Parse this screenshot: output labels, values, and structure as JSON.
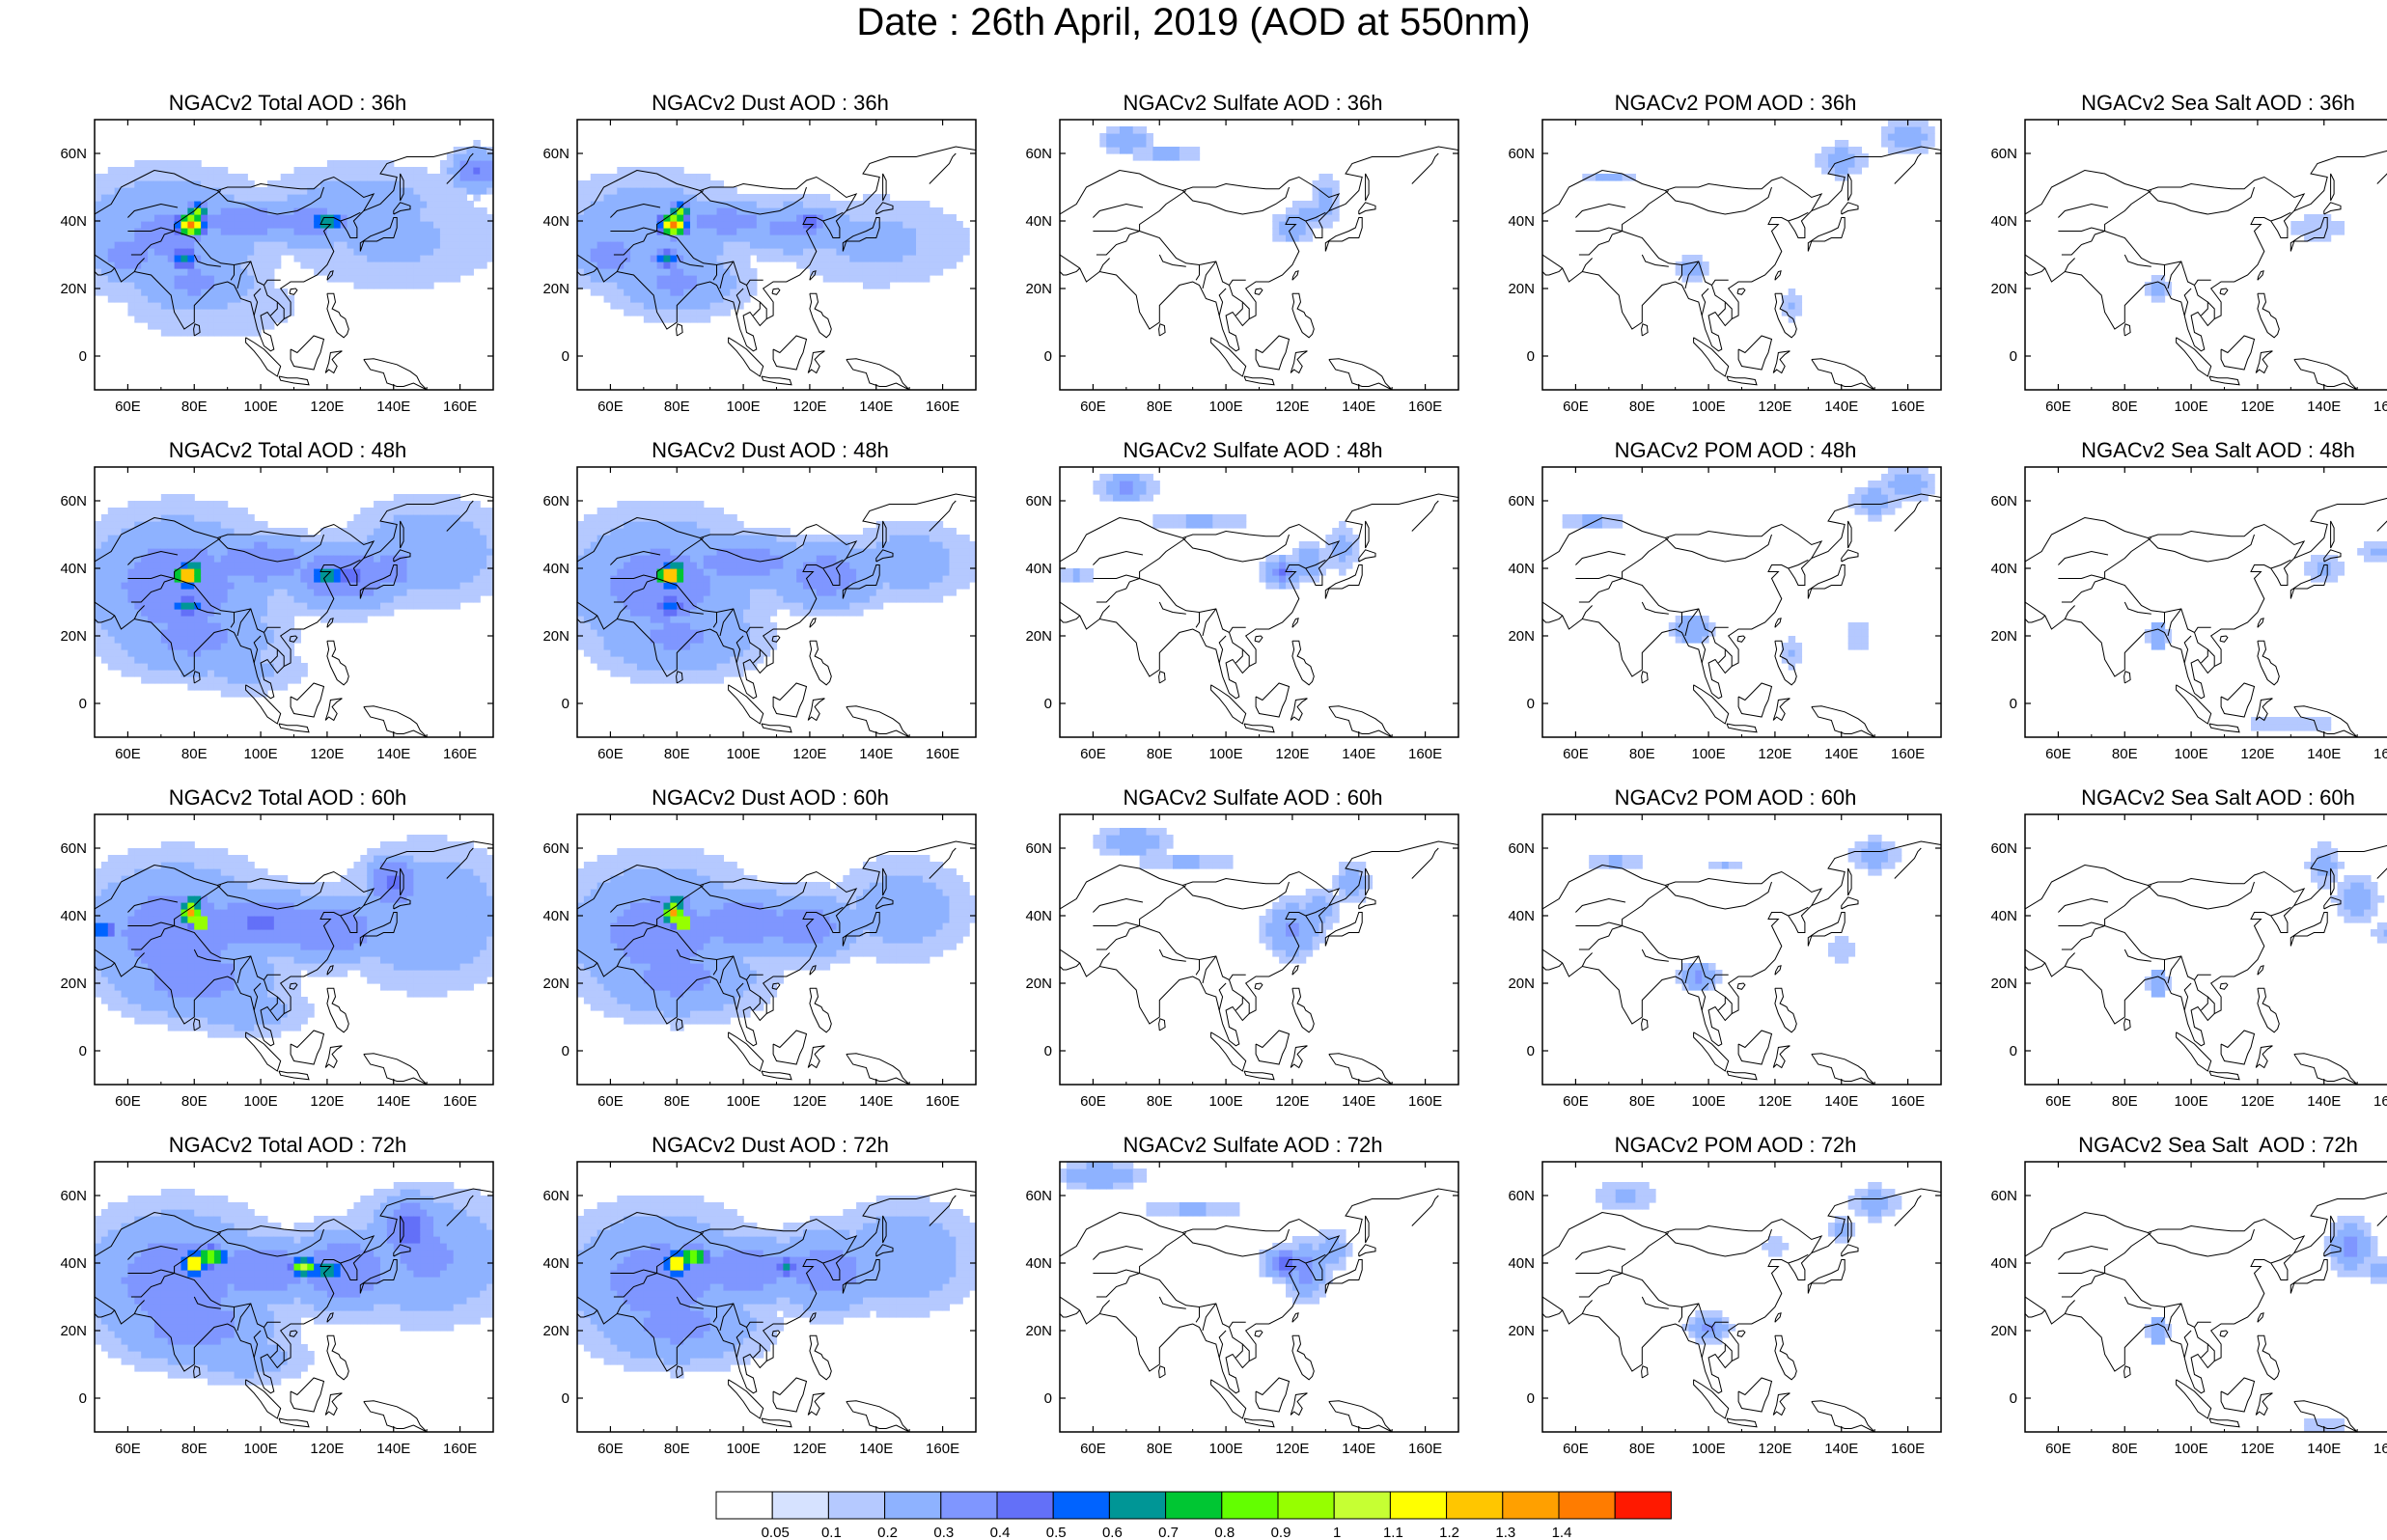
{
  "title": "Date : 26th April, 2019 (AOD at 550nm)",
  "lon_labels": [
    "60E",
    "80E",
    "100E",
    "120E",
    "140E",
    "160E"
  ],
  "lat_labels": [
    "60N",
    "40N",
    "20N",
    "0"
  ],
  "panels": [
    [
      {
        "title": "NGACv2 Total AOD : 36h",
        "species": "total",
        "hour": "36h"
      },
      {
        "title": "NGACv2 Dust AOD : 36h",
        "species": "dust",
        "hour": "36h"
      },
      {
        "title": "NGACv2 Sulfate AOD : 36h",
        "species": "sulfate",
        "hour": "36h"
      },
      {
        "title": "NGACv2 POM AOD : 36h",
        "species": "pom",
        "hour": "36h"
      },
      {
        "title": "NGACv2 Sea Salt AOD : 36h",
        "species": "seasalt",
        "hour": "36h"
      }
    ],
    [
      {
        "title": "NGACv2 Total AOD : 48h",
        "species": "total",
        "hour": "48h"
      },
      {
        "title": "NGACv2 Dust AOD : 48h",
        "species": "dust",
        "hour": "48h"
      },
      {
        "title": "NGACv2 Sulfate AOD : 48h",
        "species": "sulfate",
        "hour": "48h"
      },
      {
        "title": "NGACv2 POM AOD : 48h",
        "species": "pom",
        "hour": "48h"
      },
      {
        "title": "NGACv2 Sea Salt AOD : 48h",
        "species": "seasalt",
        "hour": "48h"
      }
    ],
    [
      {
        "title": "NGACv2 Total AOD : 60h",
        "species": "total",
        "hour": "60h"
      },
      {
        "title": "NGACv2 Dust AOD : 60h",
        "species": "dust",
        "hour": "60h"
      },
      {
        "title": "NGACv2 Sulfate AOD : 60h",
        "species": "sulfate",
        "hour": "60h"
      },
      {
        "title": "NGACv2 POM AOD : 60h",
        "species": "pom",
        "hour": "60h"
      },
      {
        "title": "NGACv2 Sea Salt AOD : 60h",
        "species": "seasalt",
        "hour": "60h"
      }
    ],
    [
      {
        "title": "NGACv2 Total AOD : 72h",
        "species": "total",
        "hour": "72h"
      },
      {
        "title": "NGACv2 Dust AOD : 72h",
        "species": "dust",
        "hour": "72h"
      },
      {
        "title": "NGACv2 Sulfate AOD : 72h",
        "species": "sulfate",
        "hour": "72h"
      },
      {
        "title": "NGACv2 POM AOD : 72h",
        "species": "pom",
        "hour": "72h"
      },
      {
        "title": "NGACv2 Sea Salt  AOD : 72h",
        "species": "seasalt",
        "hour": "72h"
      }
    ]
  ],
  "colorbar": {
    "labels": [
      "0.05",
      "0.1",
      "0.2",
      "0.3",
      "0.4",
      "0.5",
      "0.6",
      "0.7",
      "0.8",
      "0.9",
      "1",
      "1.1",
      "1.2",
      "1.3",
      "1.4"
    ],
    "colors": [
      "#ffffff",
      "#d6e2ff",
      "#b5c9ff",
      "#8eb2ff",
      "#7f96ff",
      "#6370f8",
      "#0063ff",
      "#009696",
      "#00c633",
      "#63ff00",
      "#96ff00",
      "#c6ff33",
      "#ffff00",
      "#ffc600",
      "#ffa000",
      "#ff7c00",
      "#ff1900"
    ]
  }
}
